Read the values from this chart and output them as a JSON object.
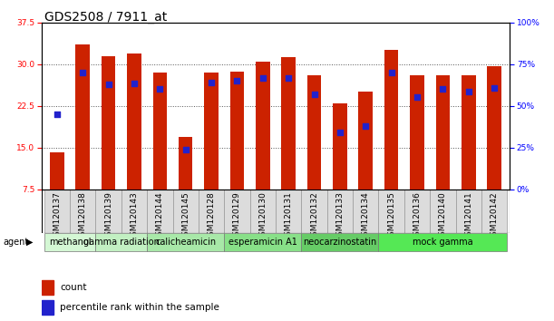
{
  "title": "GDS2508 / 7911_at",
  "samples": [
    "GSM120137",
    "GSM120138",
    "GSM120139",
    "GSM120143",
    "GSM120144",
    "GSM120145",
    "GSM120128",
    "GSM120129",
    "GSM120130",
    "GSM120131",
    "GSM120132",
    "GSM120133",
    "GSM120134",
    "GSM120135",
    "GSM120136",
    "GSM120140",
    "GSM120141",
    "GSM120142"
  ],
  "count_values": [
    14.2,
    33.5,
    31.5,
    32.0,
    28.5,
    17.0,
    28.5,
    28.7,
    30.5,
    31.2,
    28.0,
    23.0,
    25.0,
    32.5,
    28.0,
    28.0,
    28.0,
    29.7
  ],
  "percentile_values": [
    45.0,
    70.0,
    63.0,
    63.5,
    60.0,
    24.0,
    64.0,
    65.0,
    66.5,
    66.5,
    57.0,
    34.0,
    38.0,
    70.0,
    55.5,
    60.0,
    58.5,
    60.5
  ],
  "agent_groups": [
    {
      "label": "methanol",
      "start": 0,
      "end": 2,
      "color": "#d4f7d4"
    },
    {
      "label": "gamma radiation",
      "start": 2,
      "end": 4,
      "color": "#c2f0c2"
    },
    {
      "label": "calicheamicin",
      "start": 4,
      "end": 7,
      "color": "#a8e8a8"
    },
    {
      "label": "esperamicin A1",
      "start": 7,
      "end": 10,
      "color": "#88e088"
    },
    {
      "label": "neocarzinostatin",
      "start": 10,
      "end": 13,
      "color": "#66cc66"
    },
    {
      "label": "mock gamma",
      "start": 13,
      "end": 18,
      "color": "#55e855"
    }
  ],
  "ylim_left": [
    7.5,
    37.5
  ],
  "ylim_right": [
    0,
    100
  ],
  "yticks_left": [
    7.5,
    15.0,
    22.5,
    30.0,
    37.5
  ],
  "yticks_right": [
    0,
    25,
    50,
    75,
    100
  ],
  "bar_color": "#cc2200",
  "dot_color": "#2222cc",
  "bar_width": 0.55,
  "grid_linestyle": ":",
  "grid_color": "#555555",
  "title_fontsize": 10,
  "tick_fontsize": 6.5,
  "label_fontsize": 7.5,
  "agent_fontsize": 7
}
